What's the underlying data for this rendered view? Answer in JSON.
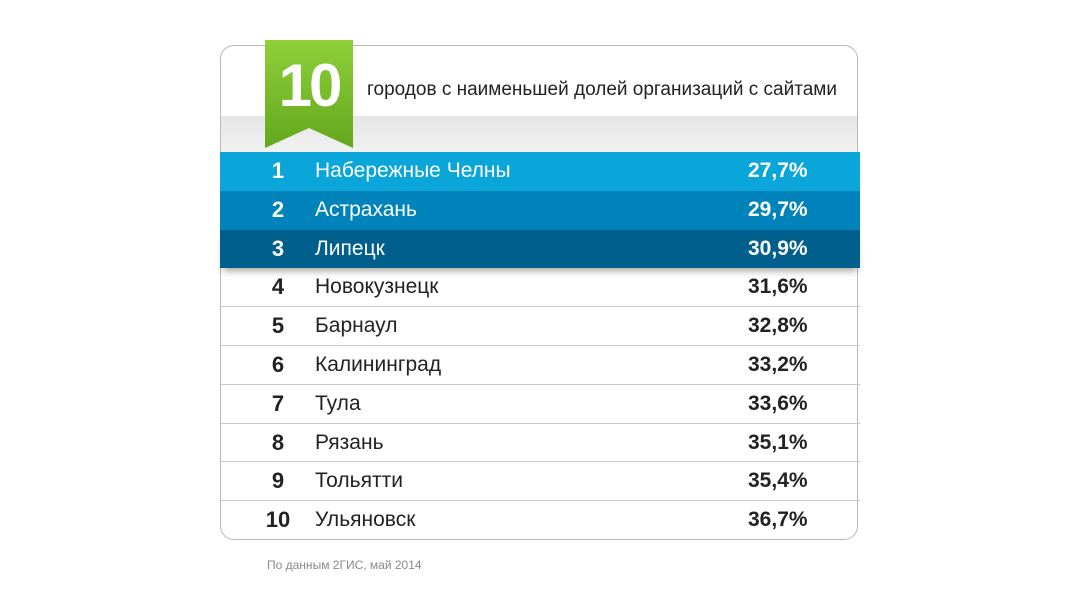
{
  "header": {
    "badge_number": "10",
    "title": "городов с наименьшей долей организаций с сайтами"
  },
  "colors": {
    "badge_green": "#7cc02b",
    "row1": "#0aa5d9",
    "row2": "#0083bb",
    "row3": "#005f8d"
  },
  "chart_data": {
    "type": "table",
    "title": "городов с наименьшей долей организаций с сайтами",
    "columns": [
      "rank",
      "city",
      "share"
    ],
    "rows": [
      {
        "rank": "1",
        "city": "Набережные Челны",
        "value": "27,7%"
      },
      {
        "rank": "2",
        "city": "Астрахань",
        "value": "29,7%"
      },
      {
        "rank": "3",
        "city": "Липецк",
        "value": "30,9%"
      },
      {
        "rank": "4",
        "city": "Новокузнецк",
        "value": "31,6%"
      },
      {
        "rank": "5",
        "city": "Барнаул",
        "value": "32,8%"
      },
      {
        "rank": "6",
        "city": "Калининград",
        "value": "33,2%"
      },
      {
        "rank": "7",
        "city": "Тула",
        "value": "33,6%"
      },
      {
        "rank": "8",
        "city": "Рязань",
        "value": "35,1%"
      },
      {
        "rank": "9",
        "city": "Тольятти",
        "value": "35,4%"
      },
      {
        "rank": "10",
        "city": "Ульяновск",
        "value": "36,7%"
      }
    ]
  },
  "footer": {
    "source": "По данным 2ГИС, май 2014"
  }
}
